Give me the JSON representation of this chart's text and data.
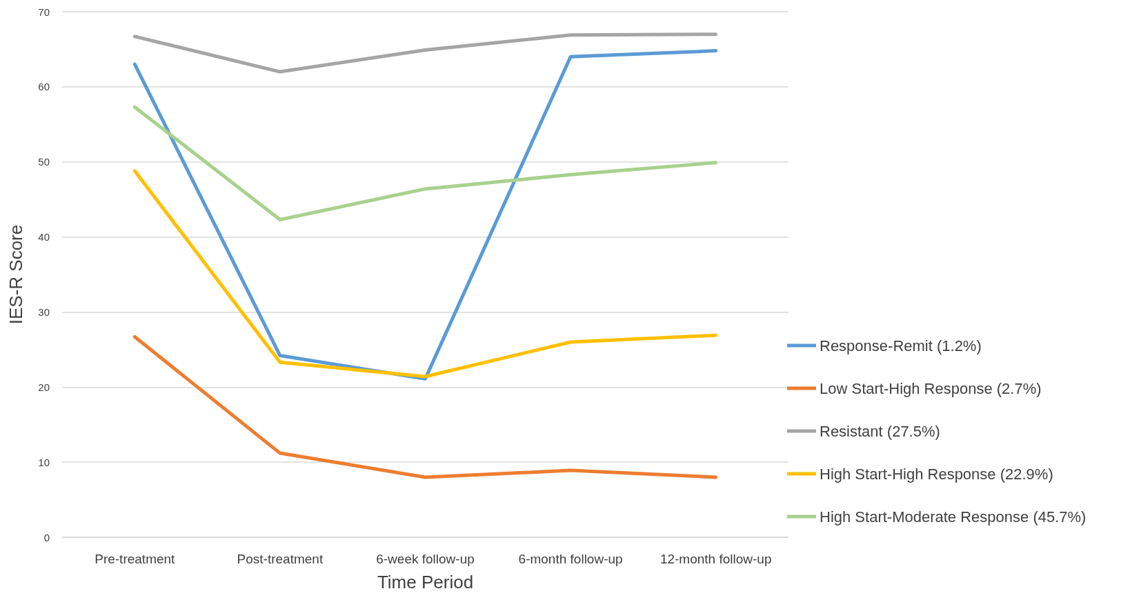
{
  "chart_data": {
    "type": "line",
    "xlabel": "Time Period",
    "ylabel": "IES-R Score",
    "categories": [
      "Pre-treatment",
      "Post-treatment",
      "6-week follow-up",
      "6-month follow-up",
      "12-month follow-up"
    ],
    "series": [
      {
        "name": "Response-Remit (1.2%)",
        "color": "#5b9bd5",
        "values": [
          63.0,
          24.2,
          21.1,
          64.0,
          64.8
        ]
      },
      {
        "name": "Low Start-High Response (2.7%)",
        "color": "#ed7d31",
        "values": [
          26.7,
          11.2,
          8.0,
          8.9,
          8.0
        ]
      },
      {
        "name": "Resistant (27.5%)",
        "color": "#a5a5a5",
        "values": [
          66.7,
          62.0,
          64.9,
          66.9,
          67.0
        ]
      },
      {
        "name": "High Start-High Response (22.9%)",
        "color": "#ffc000",
        "values": [
          48.8,
          23.3,
          21.4,
          26.0,
          26.9
        ]
      },
      {
        "name": "High Start-Moderate Response (45.7%)",
        "color": "#a9d18e",
        "values": [
          57.3,
          42.3,
          46.4,
          48.3,
          49.9
        ]
      }
    ],
    "ylim": [
      0,
      70
    ],
    "yticks": [
      0,
      10,
      20,
      30,
      40,
      50,
      60,
      70
    ],
    "grid": "y",
    "legend": "right",
    "marker": "none",
    "line_style": "solid"
  }
}
